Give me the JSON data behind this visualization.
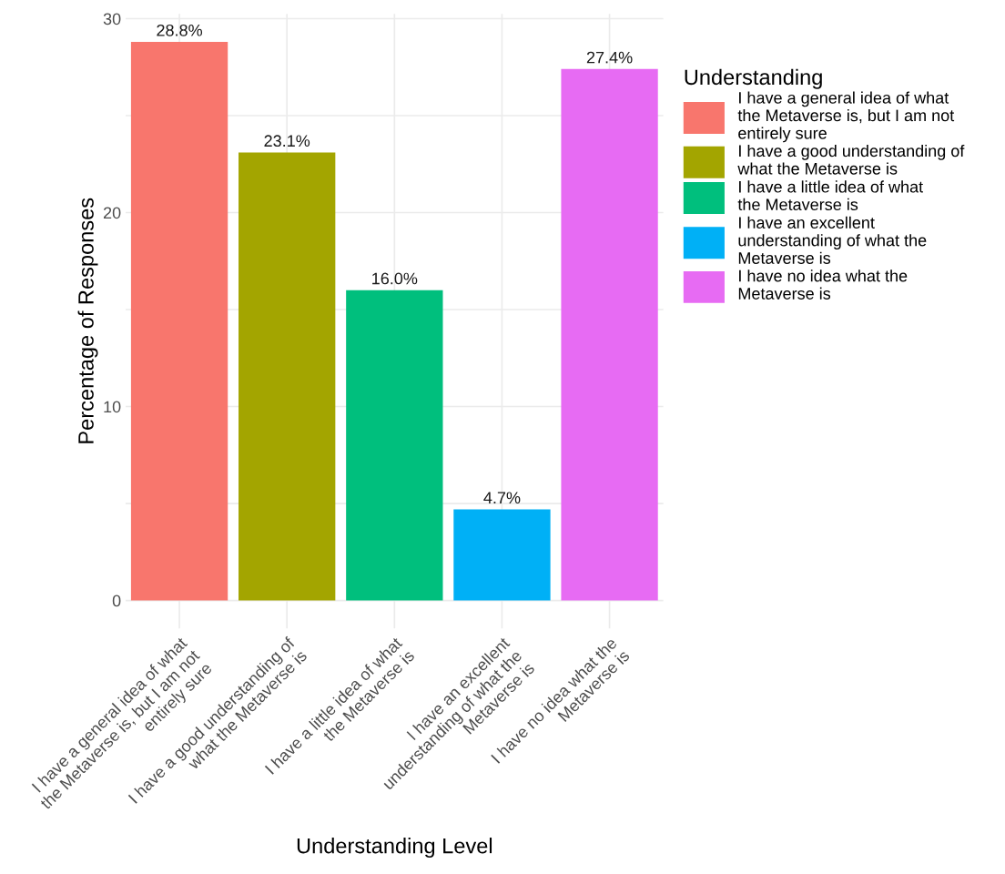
{
  "chart_data": {
    "type": "bar",
    "xlabel": "Understanding Level",
    "ylabel": "Percentage of Responses",
    "legend_title": "Understanding",
    "categories": [
      "I have a general idea of what\nthe Metaverse is, but I am not\nentirely sure",
      "I have a good understanding of\nwhat the Metaverse is",
      "I have a little idea of what\nthe Metaverse is",
      "I have an excellent\nunderstanding of what the\nMetaverse is",
      "I have no idea what the\nMetaverse is"
    ],
    "series": [
      {
        "name": "I have a general idea of what\nthe Metaverse is, but I am not\nentirely sure",
        "color": "#f8766d",
        "values": [
          28.8,
          null,
          null,
          null,
          null
        ],
        "value_labels": [
          "28.8%",
          null,
          null,
          null,
          null
        ]
      },
      {
        "name": "I have a good understanding of\nwhat the Metaverse is",
        "color": "#a3a500",
        "values": [
          null,
          23.1,
          null,
          null,
          null
        ],
        "value_labels": [
          null,
          "23.1%",
          null,
          null,
          null
        ]
      },
      {
        "name": "I have a little idea of what\nthe Metaverse is",
        "color": "#00bf7d",
        "values": [
          null,
          null,
          16.0,
          null,
          null
        ],
        "value_labels": [
          null,
          null,
          "16.0%",
          null,
          null
        ]
      },
      {
        "name": "I have an excellent\nunderstanding of what the\nMetaverse is",
        "color": "#00b0f6",
        "values": [
          null,
          null,
          null,
          4.7,
          null
        ],
        "value_labels": [
          null,
          null,
          null,
          "4.7%",
          null
        ]
      },
      {
        "name": "I have no idea what the\nMetaverse is",
        "color": "#e76bf3",
        "values": [
          null,
          null,
          null,
          null,
          27.4
        ],
        "value_labels": [
          null,
          null,
          null,
          null,
          "27.4%"
        ]
      }
    ],
    "ylim": [
      -1.44,
      30.24
    ],
    "yticks": [
      0,
      {
        "value": 5,
        "label": null
      },
      10,
      {
        "value": 15,
        "label": null
      },
      20,
      {
        "value": 25,
        "label": null
      },
      30
    ],
    "grid": true,
    "legend": "right"
  }
}
